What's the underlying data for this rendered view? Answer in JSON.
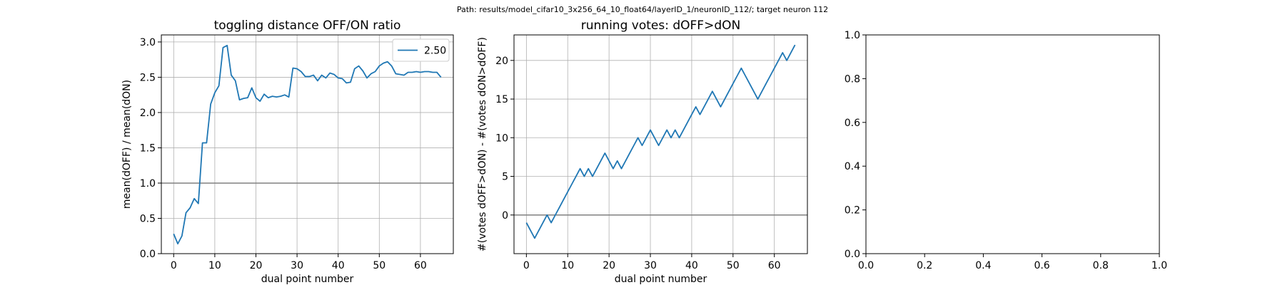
{
  "figure": {
    "suptitle": "Path: results/model_cifar10_3x256_64_10_float64/layerID_1/neuronID_112/; target neuron 112"
  },
  "colors": {
    "series": "#1f77b4",
    "reference": "#808080"
  },
  "chart_data": [
    {
      "type": "line",
      "title": "toggling distance OFF/ON ratio",
      "xlabel": "dual point number",
      "ylabel": "mean(dOFF) / mean(dON)",
      "xlim": [
        -3,
        68
      ],
      "ylim": [
        0.0,
        3.1
      ],
      "xticks": [
        0,
        10,
        20,
        30,
        40,
        50,
        60
      ],
      "yticks": [
        0.0,
        0.5,
        1.0,
        1.5,
        2.0,
        2.5,
        3.0
      ],
      "xtick_labels": [
        "0",
        "10",
        "20",
        "30",
        "40",
        "50",
        "60"
      ],
      "ytick_labels": [
        "0.0",
        "0.5",
        "1.0",
        "1.5",
        "2.0",
        "2.5",
        "3.0"
      ],
      "grid": true,
      "legend_position": "top-right",
      "hline": 1.0,
      "series": [
        {
          "name": "2.50",
          "x": [
            0,
            1,
            2,
            3,
            4,
            5,
            6,
            7,
            8,
            9,
            10,
            11,
            12,
            13,
            14,
            15,
            16,
            17,
            18,
            19,
            20,
            21,
            22,
            23,
            24,
            25,
            26,
            27,
            28,
            29,
            30,
            31,
            32,
            33,
            34,
            35,
            36,
            37,
            38,
            39,
            40,
            41,
            42,
            43,
            44,
            45,
            46,
            47,
            48,
            49,
            50,
            51,
            52,
            53,
            54,
            55,
            56,
            57,
            58,
            59,
            60,
            61,
            62,
            63,
            64,
            65
          ],
          "y": [
            0.28,
            0.14,
            0.25,
            0.58,
            0.65,
            0.78,
            0.71,
            1.57,
            1.57,
            2.12,
            2.28,
            2.38,
            2.92,
            2.95,
            2.53,
            2.45,
            2.18,
            2.2,
            2.21,
            2.35,
            2.21,
            2.16,
            2.26,
            2.21,
            2.23,
            2.22,
            2.23,
            2.25,
            2.22,
            2.63,
            2.62,
            2.58,
            2.51,
            2.51,
            2.53,
            2.45,
            2.53,
            2.49,
            2.56,
            2.54,
            2.49,
            2.48,
            2.42,
            2.43,
            2.62,
            2.66,
            2.59,
            2.49,
            2.55,
            2.58,
            2.66,
            2.7,
            2.72,
            2.66,
            2.55,
            2.54,
            2.53,
            2.57,
            2.57,
            2.58,
            2.57,
            2.58,
            2.58,
            2.57,
            2.57,
            2.5
          ]
        }
      ]
    },
    {
      "type": "line",
      "title": "running votes: dOFF>dON",
      "xlabel": "dual point number",
      "ylabel": "#(votes dOFF>dON) - #(votes dON>dOFF)",
      "xlim": [
        -3,
        68
      ],
      "ylim": [
        -5,
        23.3
      ],
      "xticks": [
        0,
        10,
        20,
        30,
        40,
        50,
        60
      ],
      "yticks": [
        0,
        5,
        10,
        15,
        20
      ],
      "xtick_labels": [
        "0",
        "10",
        "20",
        "30",
        "40",
        "50",
        "60"
      ],
      "ytick_labels": [
        "0",
        "5",
        "10",
        "15",
        "20"
      ],
      "grid": true,
      "hline": 0,
      "series": [
        {
          "x": [
            0,
            1,
            2,
            3,
            4,
            5,
            6,
            7,
            8,
            9,
            10,
            11,
            12,
            13,
            14,
            15,
            16,
            17,
            18,
            19,
            20,
            21,
            22,
            23,
            24,
            25,
            26,
            27,
            28,
            29,
            30,
            31,
            32,
            33,
            34,
            35,
            36,
            37,
            38,
            39,
            40,
            41,
            42,
            43,
            44,
            45,
            46,
            47,
            48,
            49,
            50,
            51,
            52,
            53,
            54,
            55,
            56,
            57,
            58,
            59,
            60,
            61,
            62,
            63,
            64,
            65
          ],
          "y": [
            -1,
            -2,
            -3,
            -2,
            -1,
            0,
            -1,
            0,
            1,
            2,
            3,
            4,
            5,
            6,
            5,
            6,
            5,
            6,
            7,
            8,
            7,
            6,
            7,
            6,
            7,
            8,
            9,
            10,
            9,
            10,
            11,
            10,
            9,
            10,
            11,
            10,
            11,
            10,
            11,
            12,
            13,
            14,
            13,
            14,
            15,
            16,
            15,
            14,
            15,
            16,
            17,
            18,
            19,
            18,
            17,
            16,
            15,
            16,
            17,
            18,
            19,
            20,
            21,
            20,
            21,
            22
          ]
        }
      ]
    },
    {
      "type": "line",
      "title": "",
      "xlabel": "",
      "ylabel": "",
      "xlim": [
        0,
        1
      ],
      "ylim": [
        0,
        1
      ],
      "xticks": [
        0.0,
        0.2,
        0.4,
        0.6,
        0.8,
        1.0
      ],
      "yticks": [
        0.0,
        0.2,
        0.4,
        0.6,
        0.8,
        1.0
      ],
      "xtick_labels": [
        "0.0",
        "0.2",
        "0.4",
        "0.6",
        "0.8",
        "1.0"
      ],
      "ytick_labels": [
        "0.0",
        "0.2",
        "0.4",
        "0.6",
        "0.8",
        "1.0"
      ],
      "grid": false,
      "series": []
    }
  ]
}
